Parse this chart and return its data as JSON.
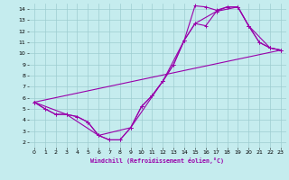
{
  "xlabel": "Windchill (Refroidissement éolien,°C)",
  "background_color": "#c5ecee",
  "grid_color": "#9ecdd0",
  "line_color": "#9900aa",
  "xlim": [
    -0.5,
    23.5
  ],
  "ylim": [
    1.5,
    14.5
  ],
  "xticks": [
    0,
    1,
    2,
    3,
    4,
    5,
    6,
    7,
    8,
    9,
    10,
    11,
    12,
    13,
    14,
    15,
    16,
    17,
    18,
    19,
    20,
    21,
    22,
    23
  ],
  "yticks": [
    2,
    3,
    4,
    5,
    6,
    7,
    8,
    9,
    10,
    11,
    12,
    13,
    14
  ],
  "lines": [
    {
      "x": [
        0,
        1,
        2,
        3,
        4,
        5,
        6,
        7,
        8,
        9,
        10,
        11,
        12,
        13,
        14,
        15,
        16,
        17,
        18,
        19,
        20,
        21,
        22,
        23
      ],
      "y": [
        5.6,
        5.0,
        4.5,
        4.5,
        4.3,
        3.8,
        2.6,
        2.2,
        2.2,
        3.3,
        5.2,
        6.2,
        7.5,
        9.0,
        11.2,
        14.3,
        14.2,
        13.9,
        14.2,
        14.2,
        12.5,
        11.0,
        10.5,
        10.3
      ],
      "marker": true
    },
    {
      "x": [
        0,
        1,
        2,
        3,
        4,
        5,
        6,
        7,
        8,
        9,
        10,
        11,
        12,
        13,
        14,
        15,
        16,
        17,
        18,
        19,
        20,
        21,
        22,
        23
      ],
      "y": [
        5.6,
        5.0,
        4.5,
        4.5,
        4.3,
        3.8,
        2.6,
        2.2,
        2.2,
        3.3,
        5.2,
        6.2,
        7.5,
        9.0,
        11.2,
        12.7,
        12.5,
        13.8,
        14.2,
        14.2,
        12.5,
        11.0,
        10.5,
        10.3
      ],
      "marker": true
    },
    {
      "x": [
        0,
        3,
        6,
        9,
        12,
        14,
        15,
        17,
        19,
        20,
        22,
        23
      ],
      "y": [
        5.6,
        4.5,
        2.6,
        3.3,
        7.5,
        11.2,
        12.7,
        13.8,
        14.2,
        12.5,
        10.5,
        10.3
      ],
      "marker": true
    },
    {
      "x": [
        0,
        23
      ],
      "y": [
        5.6,
        10.3
      ],
      "marker": false
    }
  ]
}
